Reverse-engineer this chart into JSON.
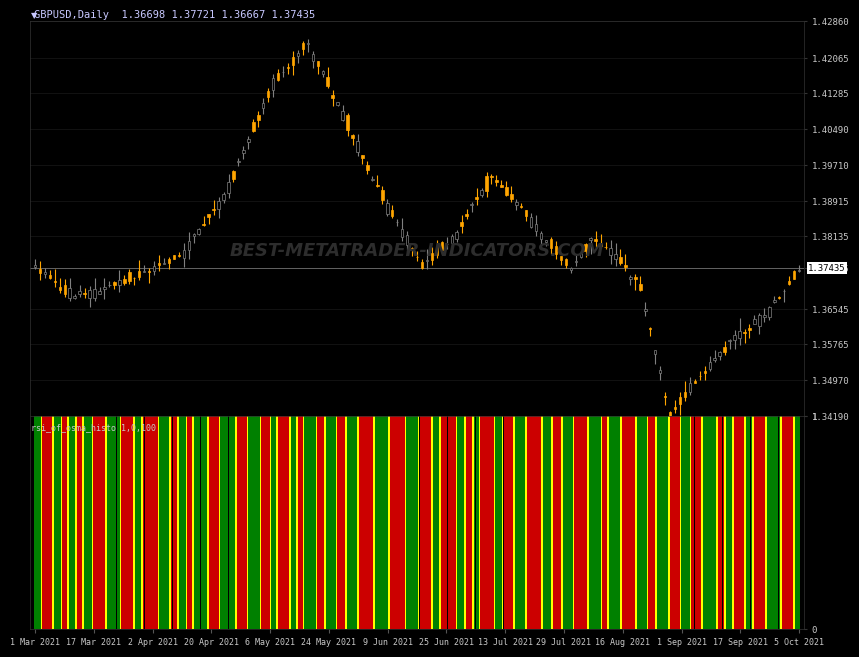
{
  "title": "GBPUSD,Daily  1.36698 1.37721 1.36667 1.37435",
  "bg_color": "#000000",
  "price_color": "#C8C8C8",
  "candle_up_body": "#FFA500",
  "candle_up_wick": "#FFA500",
  "candle_down_body": "#000000",
  "candle_down_wick": "#808080",
  "candle_down_border": "#808080",
  "y_min": 1.3419,
  "y_max": 1.4286,
  "y_ticks": [
    1.3419,
    1.3497,
    1.35765,
    1.36545,
    1.37435,
    1.38135,
    1.38915,
    1.3971,
    1.4049,
    1.41285,
    1.42065,
    1.4286
  ],
  "hline_price": 1.37435,
  "watermark": "BEST-METATRADER-INDICATORS.COM",
  "indicator_label": "rsi_of_osma_histo 1,0,100",
  "x_labels": [
    "1 Mar 2021",
    "17 Mar 2021",
    "2 Apr 2021",
    "20 Apr 2021",
    "6 May 2021",
    "24 May 2021",
    "9 Jun 2021",
    "25 Jun 2021",
    "13 Jul 2021",
    "29 Jul 2021",
    "16 Aug 2021",
    "1 Sep 2021",
    "17 Sep 2021",
    "5 Oct 2021"
  ],
  "ind_green": "#008000",
  "ind_yellow": "#FFFF00",
  "ind_red": "#CC0000",
  "grid_color": "#191919",
  "spine_color": "#333333",
  "title_color": "#C8C8FF",
  "watermark_color": "#2d2d2d",
  "hline_color": "#888888",
  "label_price_color": "#1a1a1a"
}
